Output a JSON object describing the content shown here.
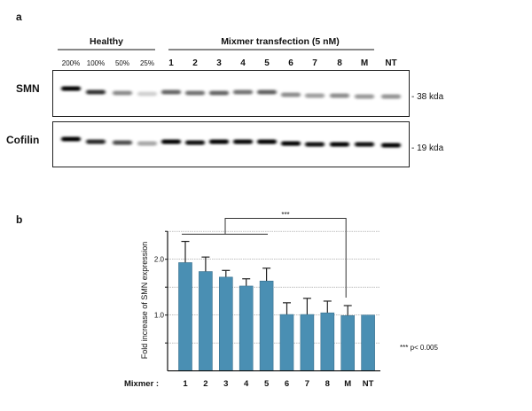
{
  "panel_a": {
    "label": "a",
    "group_healthy": "Healthy",
    "group_mixmer": "Mixmer transfection (5 nM)",
    "lanes": [
      "200%",
      "100%",
      "50%",
      "25%",
      "1",
      "2",
      "3",
      "4",
      "5",
      "6",
      "7",
      "8",
      "M",
      "NT"
    ],
    "rows": [
      {
        "label": "SMN",
        "marker": "- 38 kda"
      },
      {
        "label": "Cofilin",
        "marker": "- 19 kda"
      }
    ]
  },
  "panel_b": {
    "label": "b",
    "significance_stars": "***",
    "legend_note": "*** p< 0.005",
    "x_prefix": "Mixmer :"
  },
  "chart_data": {
    "type": "bar",
    "title": "",
    "xlabel": "Mixmer :",
    "ylabel": "Fold increase of SMN expression",
    "categories": [
      "1",
      "2",
      "3",
      "4",
      "5",
      "6",
      "7",
      "8",
      "M",
      "NT"
    ],
    "values": [
      1.94,
      1.78,
      1.68,
      1.52,
      1.61,
      1.01,
      1.01,
      1.04,
      0.99,
      1.0
    ],
    "error_upper": [
      2.32,
      2.04,
      1.8,
      1.65,
      1.84,
      1.22,
      1.3,
      1.25,
      1.17,
      1.0
    ],
    "ylim": [
      0,
      2.5
    ],
    "yticks": [
      0.5,
      1.0,
      1.5,
      2.0,
      2.5
    ],
    "ytick_labels": {
      "1.0": "1.0",
      "2.0": "2.0"
    },
    "grid": true,
    "bar_color": "#4a8fb3",
    "significance": {
      "group": [
        "1",
        "2",
        "3",
        "4",
        "5"
      ],
      "vs": "M",
      "label": "***"
    }
  }
}
